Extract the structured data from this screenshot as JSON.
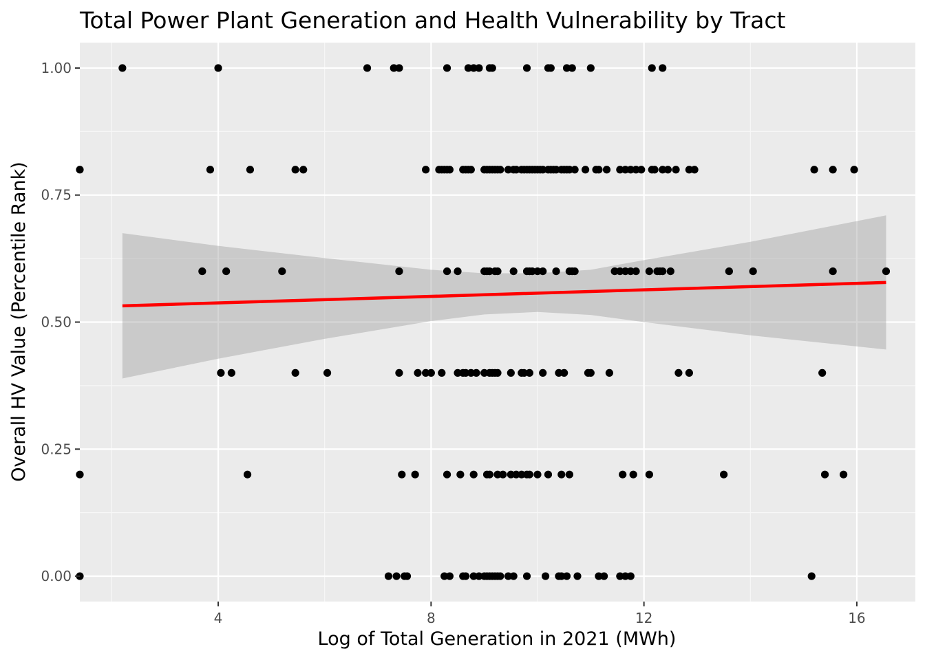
{
  "chart_data": {
    "type": "scatter",
    "title": "Total Power Plant Generation and Health Vulnerability by Tract",
    "xlabel": "Log of Total Generation in 2021 (MWh)",
    "ylabel": "Overall HV Value (Percentile Rank)",
    "xlim": [
      1.4,
      17.1
    ],
    "ylim": [
      -0.05,
      1.05
    ],
    "x_ticks": [
      4,
      8,
      12,
      16
    ],
    "x_tick_labels": [
      "4",
      "8",
      "12",
      "16"
    ],
    "x_minor_ticks": [
      2,
      6,
      10,
      14
    ],
    "y_ticks": [
      0,
      0.25,
      0.5,
      0.75,
      1
    ],
    "y_tick_labels": [
      "0.00",
      "0.25",
      "0.50",
      "0.75",
      "1.00"
    ],
    "y_minor_ticks": [
      0.125,
      0.375,
      0.625,
      0.875
    ],
    "grid": true,
    "colors": {
      "panel_background": "#ebebeb",
      "grid_major": "#ffffff",
      "grid_minor": "#f7f7f7",
      "points": "#000000",
      "trend_line": "#ff0000",
      "confidence_band": "#999999"
    },
    "points": [
      [
        2.2,
        1
      ],
      [
        4,
        1
      ],
      [
        6.8,
        1
      ],
      [
        7.3,
        1
      ],
      [
        7.4,
        1
      ],
      [
        8.3,
        1
      ],
      [
        8.7,
        1
      ],
      [
        8.8,
        1
      ],
      [
        8.9,
        1
      ],
      [
        9.1,
        1
      ],
      [
        9.15,
        1
      ],
      [
        9.8,
        1
      ],
      [
        10.2,
        1
      ],
      [
        10.25,
        1
      ],
      [
        10.55,
        1
      ],
      [
        10.65,
        1
      ],
      [
        11,
        1
      ],
      [
        12.15,
        1
      ],
      [
        12.35,
        1
      ],
      [
        1.4,
        0.8
      ],
      [
        3.85,
        0.8
      ],
      [
        4.6,
        0.8
      ],
      [
        5.45,
        0.8
      ],
      [
        5.6,
        0.8
      ],
      [
        7.9,
        0.8
      ],
      [
        8.15,
        0.8
      ],
      [
        8.2,
        0.8
      ],
      [
        8.25,
        0.8
      ],
      [
        8.3,
        0.8
      ],
      [
        8.35,
        0.8
      ],
      [
        8.6,
        0.8
      ],
      [
        8.65,
        0.8
      ],
      [
        8.7,
        0.8
      ],
      [
        8.75,
        0.8
      ],
      [
        9,
        0.8
      ],
      [
        9.05,
        0.8
      ],
      [
        9.1,
        0.8
      ],
      [
        9.15,
        0.8
      ],
      [
        9.2,
        0.8
      ],
      [
        9.25,
        0.8
      ],
      [
        9.3,
        0.8
      ],
      [
        9.45,
        0.8
      ],
      [
        9.55,
        0.8
      ],
      [
        9.6,
        0.8
      ],
      [
        9.7,
        0.8
      ],
      [
        9.75,
        0.8
      ],
      [
        9.8,
        0.8
      ],
      [
        9.85,
        0.8
      ],
      [
        9.9,
        0.8
      ],
      [
        9.95,
        0.8
      ],
      [
        10,
        0.8
      ],
      [
        10.05,
        0.8
      ],
      [
        10.1,
        0.8
      ],
      [
        10.2,
        0.8
      ],
      [
        10.25,
        0.8
      ],
      [
        10.3,
        0.8
      ],
      [
        10.35,
        0.8
      ],
      [
        10.45,
        0.8
      ],
      [
        10.5,
        0.8
      ],
      [
        10.55,
        0.8
      ],
      [
        10.6,
        0.8
      ],
      [
        10.7,
        0.8
      ],
      [
        10.9,
        0.8
      ],
      [
        11.1,
        0.8
      ],
      [
        11.15,
        0.8
      ],
      [
        11.3,
        0.8
      ],
      [
        11.55,
        0.8
      ],
      [
        11.65,
        0.8
      ],
      [
        11.75,
        0.8
      ],
      [
        11.85,
        0.8
      ],
      [
        11.95,
        0.8
      ],
      [
        12.15,
        0.8
      ],
      [
        12.2,
        0.8
      ],
      [
        12.35,
        0.8
      ],
      [
        12.45,
        0.8
      ],
      [
        12.6,
        0.8
      ],
      [
        12.85,
        0.8
      ],
      [
        12.95,
        0.8
      ],
      [
        15.2,
        0.8
      ],
      [
        15.55,
        0.8
      ],
      [
        15.95,
        0.8
      ],
      [
        3.7,
        0.6
      ],
      [
        4.15,
        0.6
      ],
      [
        5.2,
        0.6
      ],
      [
        7.4,
        0.6
      ],
      [
        8.3,
        0.6
      ],
      [
        8.5,
        0.6
      ],
      [
        9,
        0.6
      ],
      [
        9.05,
        0.6
      ],
      [
        9.1,
        0.6
      ],
      [
        9.2,
        0.6
      ],
      [
        9.25,
        0.6
      ],
      [
        9.55,
        0.6
      ],
      [
        9.8,
        0.6
      ],
      [
        9.85,
        0.6
      ],
      [
        9.9,
        0.6
      ],
      [
        10,
        0.6
      ],
      [
        10.1,
        0.6
      ],
      [
        10.35,
        0.6
      ],
      [
        10.6,
        0.6
      ],
      [
        10.65,
        0.6
      ],
      [
        10.7,
        0.6
      ],
      [
        11.45,
        0.6
      ],
      [
        11.55,
        0.6
      ],
      [
        11.65,
        0.6
      ],
      [
        11.75,
        0.6
      ],
      [
        11.85,
        0.6
      ],
      [
        12.1,
        0.6
      ],
      [
        12.25,
        0.6
      ],
      [
        12.3,
        0.6
      ],
      [
        12.35,
        0.6
      ],
      [
        12.5,
        0.6
      ],
      [
        13.6,
        0.6
      ],
      [
        14.05,
        0.6
      ],
      [
        15.55,
        0.6
      ],
      [
        16.55,
        0.6
      ],
      [
        4.05,
        0.4
      ],
      [
        4.25,
        0.4
      ],
      [
        5.45,
        0.4
      ],
      [
        6.05,
        0.4
      ],
      [
        7.4,
        0.4
      ],
      [
        7.75,
        0.4
      ],
      [
        7.9,
        0.4
      ],
      [
        8,
        0.4
      ],
      [
        8.2,
        0.4
      ],
      [
        8.5,
        0.4
      ],
      [
        8.6,
        0.4
      ],
      [
        8.65,
        0.4
      ],
      [
        8.75,
        0.4
      ],
      [
        8.85,
        0.4
      ],
      [
        9,
        0.4
      ],
      [
        9.1,
        0.4
      ],
      [
        9.15,
        0.4
      ],
      [
        9.2,
        0.4
      ],
      [
        9.25,
        0.4
      ],
      [
        9.5,
        0.4
      ],
      [
        9.7,
        0.4
      ],
      [
        9.75,
        0.4
      ],
      [
        9.85,
        0.4
      ],
      [
        10.1,
        0.4
      ],
      [
        10.4,
        0.4
      ],
      [
        10.5,
        0.4
      ],
      [
        10.95,
        0.4
      ],
      [
        11,
        0.4
      ],
      [
        11.35,
        0.4
      ],
      [
        12.65,
        0.4
      ],
      [
        12.85,
        0.4
      ],
      [
        15.35,
        0.4
      ],
      [
        1.4,
        0.2
      ],
      [
        4.55,
        0.2
      ],
      [
        7.45,
        0.2
      ],
      [
        7.7,
        0.2
      ],
      [
        8.3,
        0.2
      ],
      [
        8.55,
        0.2
      ],
      [
        8.8,
        0.2
      ],
      [
        9.05,
        0.2
      ],
      [
        9.1,
        0.2
      ],
      [
        9.25,
        0.2
      ],
      [
        9.35,
        0.2
      ],
      [
        9.5,
        0.2
      ],
      [
        9.6,
        0.2
      ],
      [
        9.7,
        0.2
      ],
      [
        9.8,
        0.2
      ],
      [
        9.85,
        0.2
      ],
      [
        10,
        0.2
      ],
      [
        10.2,
        0.2
      ],
      [
        10.45,
        0.2
      ],
      [
        10.6,
        0.2
      ],
      [
        11.6,
        0.2
      ],
      [
        11.8,
        0.2
      ],
      [
        12.1,
        0.2
      ],
      [
        13.5,
        0.2
      ],
      [
        15.4,
        0.2
      ],
      [
        15.75,
        0.2
      ],
      [
        1.4,
        0
      ],
      [
        7.2,
        0
      ],
      [
        7.35,
        0
      ],
      [
        7.5,
        0
      ],
      [
        7.55,
        0
      ],
      [
        8.25,
        0
      ],
      [
        8.35,
        0
      ],
      [
        8.6,
        0
      ],
      [
        8.65,
        0
      ],
      [
        8.8,
        0
      ],
      [
        8.9,
        0
      ],
      [
        9,
        0
      ],
      [
        9.05,
        0
      ],
      [
        9.1,
        0
      ],
      [
        9.15,
        0
      ],
      [
        9.2,
        0
      ],
      [
        9.25,
        0
      ],
      [
        9.3,
        0
      ],
      [
        9.45,
        0
      ],
      [
        9.55,
        0
      ],
      [
        9.8,
        0
      ],
      [
        10.15,
        0
      ],
      [
        10.4,
        0
      ],
      [
        10.45,
        0
      ],
      [
        10.55,
        0
      ],
      [
        10.75,
        0
      ],
      [
        11.15,
        0
      ],
      [
        11.25,
        0
      ],
      [
        11.55,
        0
      ],
      [
        11.65,
        0
      ],
      [
        11.75,
        0
      ],
      [
        15.15,
        0
      ]
    ],
    "trend_line": {
      "x": [
        2.2,
        16.55
      ],
      "y": [
        0.532,
        0.578
      ]
    },
    "confidence_band": {
      "x": [
        2.2,
        4,
        6,
        8,
        9,
        10,
        11,
        12,
        14,
        16.55
      ],
      "lower": [
        0.389,
        0.428,
        0.467,
        0.502,
        0.515,
        0.52,
        0.514,
        0.5,
        0.474,
        0.446
      ],
      "upper": [
        0.675,
        0.65,
        0.626,
        0.603,
        0.596,
        0.596,
        0.603,
        0.622,
        0.658,
        0.71
      ]
    }
  }
}
